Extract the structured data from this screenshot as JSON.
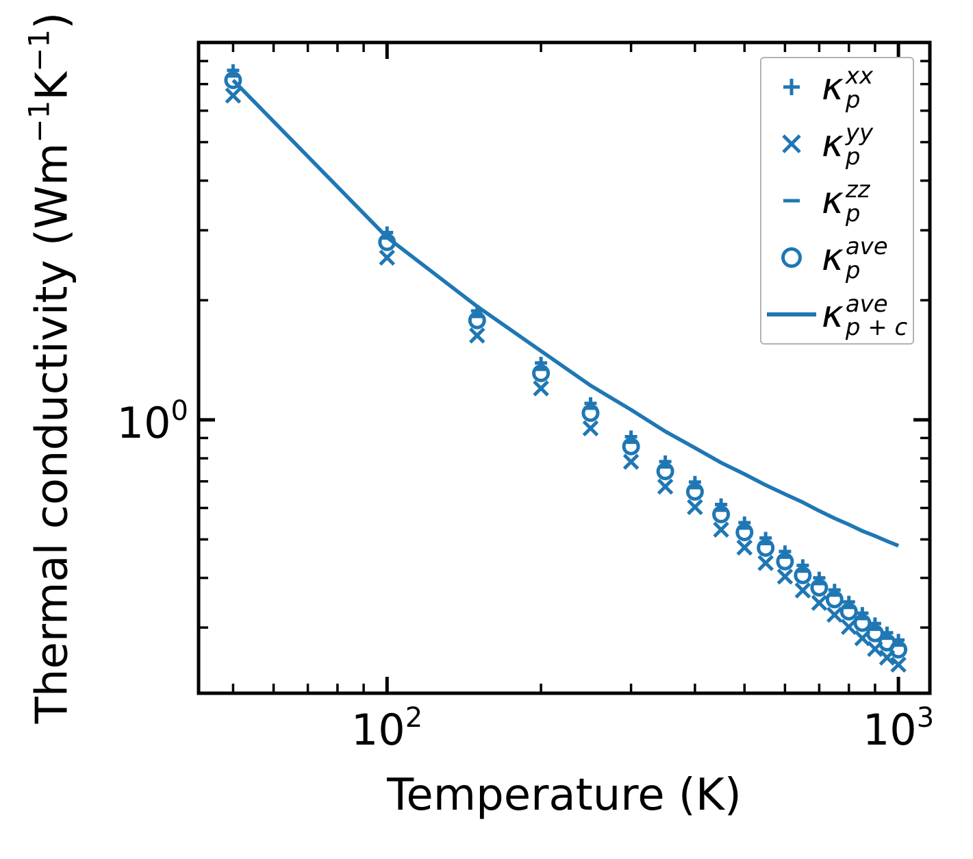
{
  "figure": {
    "background": "#ffffff",
    "accent_color": "#1f77b4"
  },
  "axes": {
    "x_label": "Temperature (K)",
    "y_label": {
      "t1": "Thermal conductivity (Wm",
      "s1": "−1",
      "t2": "K",
      "s2": "−1",
      "t3": ")"
    },
    "x_ticks": [
      {
        "value": 100,
        "base": "10",
        "exp": "2"
      },
      {
        "value": 1000,
        "base": "10",
        "exp": "3"
      }
    ],
    "y_ticks": [
      {
        "value": 1,
        "base": "10",
        "exp": "0"
      }
    ]
  },
  "legend": {
    "items": [
      {
        "marker": "plus",
        "kappa": "κ",
        "sup": "xx",
        "sub": "p"
      },
      {
        "marker": "cross",
        "kappa": "κ",
        "sup": "yy",
        "sub": "p"
      },
      {
        "marker": "dash",
        "kappa": "κ",
        "sup": "zz",
        "sub": "p"
      },
      {
        "marker": "circle",
        "kappa": "κ",
        "sup": "ave",
        "sub": "p"
      },
      {
        "marker": "line",
        "kappa": "κ",
        "sup": "ave",
        "sub": "p + c"
      }
    ]
  },
  "chart_data": {
    "type": "scatter",
    "title": "",
    "xlabel": "Temperature (K)",
    "ylabel": "Thermal conductivity (Wm−1K−1)",
    "xscale": "log",
    "yscale": "log",
    "xlim": [
      42.8,
      1152
    ],
    "ylim": [
      0.205,
      8.91
    ],
    "grid": false,
    "legend_position": "upper right",
    "color": "#1f77b4",
    "x_major_ticks": [
      100,
      1000
    ],
    "y_major_ticks": [
      1
    ],
    "x": [
      50,
      100,
      150,
      200,
      250,
      300,
      350,
      400,
      450,
      500,
      550,
      600,
      650,
      700,
      750,
      800,
      850,
      900,
      950,
      1000
    ],
    "series": [
      {
        "name": "kappa_p_xx",
        "label": "κ_p^xx",
        "marker": "plus",
        "values": [
          7.58,
          2.96,
          1.88,
          1.39,
          1.1,
          0.907,
          0.785,
          0.697,
          0.612,
          0.551,
          0.504,
          0.466,
          0.43,
          0.4,
          0.373,
          0.348,
          0.326,
          0.307,
          0.291,
          0.279
        ]
      },
      {
        "name": "kappa_p_yy",
        "label": "κ_p^yy",
        "marker": "cross",
        "values": [
          6.55,
          2.56,
          1.63,
          1.2,
          0.952,
          0.784,
          0.679,
          0.603,
          0.529,
          0.477,
          0.436,
          0.403,
          0.372,
          0.346,
          0.323,
          0.301,
          0.282,
          0.265,
          0.252,
          0.242
        ]
      },
      {
        "name": "kappa_p_zz",
        "label": "κ_p^zz",
        "marker": "dash",
        "values": [
          7.34,
          2.87,
          1.82,
          1.34,
          1.07,
          0.878,
          0.761,
          0.675,
          0.592,
          0.534,
          0.488,
          0.451,
          0.416,
          0.387,
          0.362,
          0.337,
          0.316,
          0.297,
          0.282,
          0.271
        ]
      },
      {
        "name": "kappa_p_ave",
        "label": "κ_p^ave",
        "marker": "circle",
        "values": [
          7.16,
          2.8,
          1.78,
          1.31,
          1.04,
          0.857,
          0.742,
          0.659,
          0.578,
          0.521,
          0.476,
          0.44,
          0.406,
          0.378,
          0.353,
          0.329,
          0.308,
          0.29,
          0.275,
          0.264
        ]
      },
      {
        "name": "kappa_p_plus_c_ave",
        "label": "κ_p+c^ave",
        "marker": "line",
        "values": [
          7.16,
          2.88,
          1.93,
          1.49,
          1.22,
          1.06,
          0.935,
          0.85,
          0.78,
          0.73,
          0.685,
          0.65,
          0.62,
          0.59,
          0.565,
          0.545,
          0.525,
          0.51,
          0.495,
          0.482
        ]
      }
    ]
  }
}
